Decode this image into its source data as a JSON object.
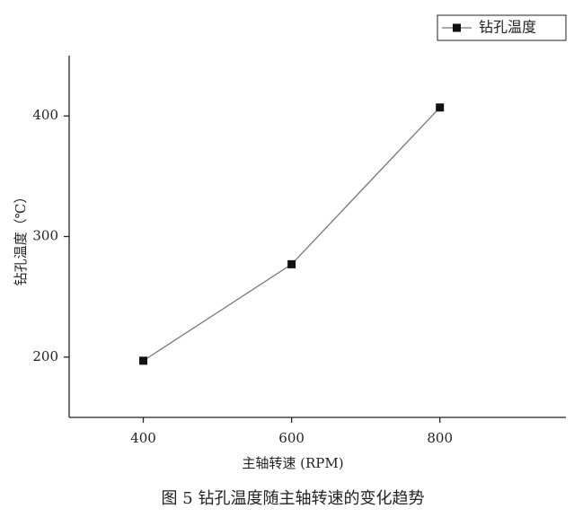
{
  "chart_data": {
    "type": "line",
    "x_label": "主轴转速 (RPM)",
    "y_label": "钻孔温度（℃）",
    "caption": "图 5 钻孔温度随主轴转速的变化趋势",
    "x": [
      400,
      600,
      800
    ],
    "series": [
      {
        "name": "钻孔温度",
        "color": "#111111",
        "line_color": "#777777",
        "values": [
          197,
          277,
          407
        ]
      }
    ],
    "xlim": [
      300,
      970
    ],
    "xticks": [
      400,
      600,
      800
    ],
    "ylim": [
      150,
      450
    ],
    "yticks": [
      200,
      300,
      400
    ],
    "legend": "top-right",
    "grid": false
  }
}
